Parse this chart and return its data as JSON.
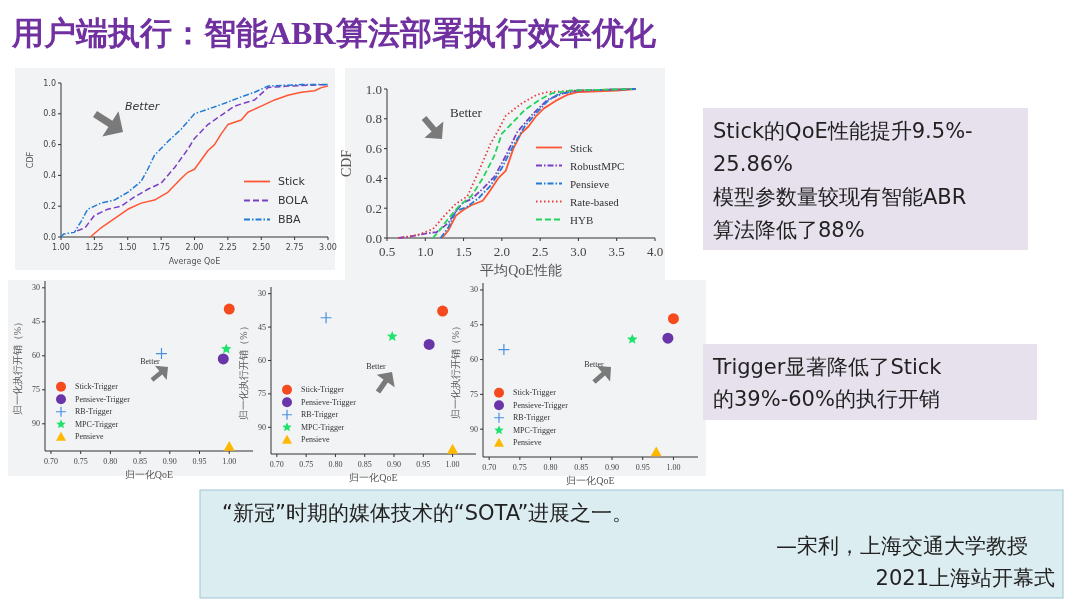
{
  "chart_data": [
    {
      "type": "line",
      "xlabel": "Average QoE",
      "ylabel": "CDF",
      "xlim": [
        1,
        3
      ],
      "ylim": [
        0,
        1
      ],
      "xticks": [
        {
          "value": 1,
          "label": "1.00"
        },
        {
          "value": 1.25,
          "label": "1.25"
        },
        {
          "value": 1.5,
          "label": "1.50"
        },
        {
          "value": 1.75,
          "label": "1.75"
        },
        {
          "value": 2,
          "label": "2.00"
        },
        {
          "value": 2.25,
          "label": "2.25"
        },
        {
          "value": 2.5,
          "label": "2.50"
        },
        {
          "value": 2.75,
          "label": "2.75"
        },
        {
          "value": 3,
          "label": "3.00"
        }
      ],
      "yticks": [
        {
          "value": 0,
          "label": "0.0"
        },
        {
          "value": 0.2,
          "label": "0.2"
        },
        {
          "value": 0.4,
          "label": "0.4"
        },
        {
          "value": 0.6,
          "label": "0.6"
        },
        {
          "value": 0.8,
          "label": "0.8"
        },
        {
          "value": 1,
          "label": "1.0"
        }
      ],
      "legend": "bottom right",
      "annotations": [
        "Better"
      ],
      "series": [
        {
          "name": "Stick",
          "color": "#ff5533",
          "line_style": "solid",
          "x": [
            1.22,
            1.3,
            1.4,
            1.5,
            1.6,
            1.7,
            1.8,
            1.9,
            1.95,
            2,
            2.05,
            2.1,
            2.15,
            2.2,
            2.25,
            2.35,
            2.4,
            2.5,
            2.6,
            2.7,
            2.8,
            2.9,
            2.95,
            3
          ],
          "values": [
            0,
            0.06,
            0.12,
            0.18,
            0.22,
            0.24,
            0.29,
            0.38,
            0.42,
            0.44,
            0.5,
            0.56,
            0.6,
            0.67,
            0.73,
            0.76,
            0.81,
            0.85,
            0.89,
            0.92,
            0.94,
            0.95,
            0.97,
            0.98
          ]
        },
        {
          "name": "BOLA",
          "color": "#7b3fc4",
          "line_style": "dashed",
          "x": [
            1.12,
            1.18,
            1.25,
            1.35,
            1.45,
            1.55,
            1.65,
            1.75,
            1.85,
            1.95,
            2,
            2.1,
            2.2,
            2.3,
            2.45,
            2.55,
            2.7,
            3
          ],
          "values": [
            0.04,
            0.06,
            0.14,
            0.18,
            0.2,
            0.26,
            0.31,
            0.35,
            0.45,
            0.57,
            0.64,
            0.73,
            0.79,
            0.85,
            0.89,
            0.97,
            0.98,
            0.99
          ]
        },
        {
          "name": "BBA",
          "color": "#1f7bd6",
          "line_style": "dashdot",
          "x": [
            1,
            1.02,
            1.1,
            1.15,
            1.2,
            1.3,
            1.4,
            1.5,
            1.6,
            1.65,
            1.7,
            1.8,
            1.9,
            2,
            2.1,
            2.2,
            2.35,
            2.45,
            2.55,
            2.8,
            3
          ],
          "values": [
            0,
            0.02,
            0.03,
            0.1,
            0.18,
            0.22,
            0.24,
            0.29,
            0.36,
            0.44,
            0.53,
            0.62,
            0.7,
            0.8,
            0.83,
            0.86,
            0.91,
            0.94,
            0.98,
            0.99,
            0.99
          ]
        }
      ]
    },
    {
      "type": "line",
      "xlabel": "平均QoE性能",
      "ylabel": "CDF",
      "xlim": [
        0.5,
        4
      ],
      "ylim": [
        0,
        1
      ],
      "xticks": [
        0.5,
        {
          "value": 1,
          "label": "1.0"
        },
        1.5,
        {
          "value": 2,
          "label": "2.0"
        },
        2.5,
        {
          "value": 3,
          "label": "3.0"
        },
        3.5,
        {
          "value": 4,
          "label": "4.0"
        }
      ],
      "yticks": [
        {
          "value": 0,
          "label": "0.0"
        },
        0.2,
        0.4,
        0.6,
        0.8,
        {
          "value": 1,
          "label": "1.0"
        }
      ],
      "legend": "right",
      "annotations": [
        "Better"
      ],
      "series": [
        {
          "name": "Stick",
          "color": "#ff5533",
          "line_style": "solid",
          "x": [
            1.22,
            1.3,
            1.4,
            1.5,
            1.6,
            1.75,
            1.85,
            1.95,
            2.05,
            2.15,
            2.25,
            2.35,
            2.45,
            2.55,
            2.7,
            2.85,
            3,
            3.5,
            3.75
          ],
          "values": [
            0,
            0.05,
            0.15,
            0.19,
            0.22,
            0.25,
            0.32,
            0.4,
            0.45,
            0.6,
            0.7,
            0.75,
            0.82,
            0.87,
            0.92,
            0.96,
            0.98,
            0.99,
            1
          ]
        },
        {
          "name": "RobustMPC",
          "color": "#7b3fc4",
          "line_style": "dashdot",
          "x": [
            0.65,
            0.8,
            1,
            1.15,
            1.3,
            1.4,
            1.5,
            1.6,
            1.75,
            1.9,
            2.05,
            2.2,
            2.4,
            2.6,
            2.8,
            3,
            3.75
          ],
          "values": [
            0,
            0.01,
            0.03,
            0.04,
            0.1,
            0.18,
            0.24,
            0.26,
            0.33,
            0.41,
            0.55,
            0.71,
            0.83,
            0.93,
            0.97,
            0.99,
            1
          ]
        },
        {
          "name": "Pensieve",
          "color": "#1f7bd6",
          "line_style": "dashdot",
          "x": [
            1.2,
            1.3,
            1.4,
            1.55,
            1.7,
            1.85,
            2,
            2.15,
            2.3,
            2.45,
            2.6,
            2.75,
            3,
            3.75
          ],
          "values": [
            0,
            0.07,
            0.18,
            0.21,
            0.27,
            0.35,
            0.47,
            0.62,
            0.75,
            0.84,
            0.92,
            0.97,
            0.99,
            1
          ]
        },
        {
          "name": "Rate-based",
          "color": "#e83c3c",
          "line_style": "dotted",
          "x": [
            0.65,
            0.9,
            1.1,
            1.25,
            1.4,
            1.55,
            1.7,
            1.85,
            1.95,
            2.05,
            2.25,
            2.45,
            2.6,
            3,
            3.7
          ],
          "values": [
            0,
            0.02,
            0.06,
            0.15,
            0.23,
            0.28,
            0.45,
            0.63,
            0.72,
            0.82,
            0.9,
            0.96,
            0.98,
            0.99,
            1
          ]
        },
        {
          "name": "HYB",
          "color": "#22d35a",
          "line_style": "dashed",
          "x": [
            1.1,
            1.2,
            1.3,
            1.45,
            1.6,
            1.75,
            1.9,
            2,
            2.15,
            2.3,
            2.5,
            2.65,
            2.9,
            3.7
          ],
          "values": [
            0,
            0.06,
            0.13,
            0.22,
            0.28,
            0.4,
            0.55,
            0.7,
            0.78,
            0.86,
            0.93,
            0.97,
            0.99,
            1
          ]
        }
      ]
    },
    {
      "type": "scatter",
      "xlabel": "归一化QoE",
      "ylabel": "归一化执行开销（%）",
      "xlim": [
        0.69,
        1.04
      ],
      "ylim": [
        102,
        27
      ],
      "xticks": [
        {
          "value": 0.7,
          "label": "0.70"
        },
        0.75,
        {
          "value": 0.8,
          "label": "0.80"
        },
        0.85,
        {
          "value": 0.9,
          "label": "0.90"
        },
        0.95,
        {
          "value": 1,
          "label": "1.00"
        }
      ],
      "yticks": [
        30,
        45,
        60,
        75,
        90
      ],
      "legend": "bottom left",
      "annotations": [
        "Better"
      ],
      "series": [
        {
          "name": "Stick-Trigger",
          "color": "#f44a1e",
          "marker": "circle",
          "x": [
            1
          ],
          "values": [
            39.4
          ]
        },
        {
          "name": "Pensieve-Trigger",
          "color": "#6a35a8",
          "marker": "circle",
          "x": [
            0.99
          ],
          "values": [
            61.4
          ]
        },
        {
          "name": "RB-Trigger",
          "color": "#4a90e2",
          "marker": "cross",
          "x": [
            0.886
          ],
          "values": [
            59
          ]
        },
        {
          "name": "MPC-Trigger",
          "color": "#1ee36a",
          "marker": "star",
          "x": [
            0.995
          ],
          "values": [
            57
          ]
        },
        {
          "name": "Pensieve",
          "color": "#ffb800",
          "marker": "triangle",
          "x": [
            1
          ],
          "values": [
            100
          ]
        }
      ]
    },
    {
      "type": "scatter",
      "xlabel": "归一化QoE",
      "ylabel": "归一化执行开销（%）",
      "xlim": [
        0.69,
        1.04
      ],
      "ylim": [
        102,
        27
      ],
      "xticks": [
        {
          "value": 0.7,
          "label": "0.70"
        },
        0.75,
        {
          "value": 0.8,
          "label": "0.80"
        },
        0.85,
        {
          "value": 0.9,
          "label": "0.90"
        },
        0.95,
        {
          "value": 1,
          "label": "1.00"
        }
      ],
      "yticks": [
        30,
        45,
        60,
        75,
        90
      ],
      "legend": "bottom left",
      "annotations": [
        "Better"
      ],
      "series": [
        {
          "name": "Stick-Trigger",
          "color": "#f44a1e",
          "marker": "circle",
          "x": [
            0.983
          ],
          "values": [
            37.8
          ]
        },
        {
          "name": "Pensieve-Trigger",
          "color": "#6a35a8",
          "marker": "circle",
          "x": [
            0.96
          ],
          "values": [
            52.8
          ]
        },
        {
          "name": "RB-Trigger",
          "color": "#4a90e2",
          "marker": "cross",
          "x": [
            0.784
          ],
          "values": [
            40.8
          ]
        },
        {
          "name": "MPC-Trigger",
          "color": "#1ee36a",
          "marker": "star",
          "x": [
            0.897
          ],
          "values": [
            49.2
          ]
        },
        {
          "name": "Pensieve",
          "color": "#ffb800",
          "marker": "triangle",
          "x": [
            1
          ],
          "values": [
            99.9
          ]
        }
      ]
    },
    {
      "type": "scatter",
      "xlabel": "归一化QoE",
      "ylabel": "归一化执行开销（%）",
      "xlim": [
        0.69,
        1.04
      ],
      "ylim": [
        102,
        27
      ],
      "xticks": [
        {
          "value": 0.7,
          "label": "0.70"
        },
        0.75,
        {
          "value": 0.8,
          "label": "0.80"
        },
        0.85,
        {
          "value": 0.9,
          "label": "0.90"
        },
        0.95,
        {
          "value": 1,
          "label": "1.00"
        }
      ],
      "yticks": [
        30,
        45,
        60,
        75,
        90
      ],
      "legend": "bottom left",
      "annotations": [
        "Better"
      ],
      "series": [
        {
          "name": "Stick-Trigger",
          "color": "#f44a1e",
          "marker": "circle",
          "x": [
            1
          ],
          "values": [
            42.4
          ]
        },
        {
          "name": "Pensieve-Trigger",
          "color": "#6a35a8",
          "marker": "circle",
          "x": [
            0.991
          ],
          "values": [
            50.8
          ]
        },
        {
          "name": "RB-Trigger",
          "color": "#4a90e2",
          "marker": "cross",
          "x": [
            0.724
          ],
          "values": [
            55.7
          ]
        },
        {
          "name": "MPC-Trigger",
          "color": "#1ee36a",
          "marker": "star",
          "x": [
            0.933
          ],
          "values": [
            51.3
          ]
        },
        {
          "name": "Pensieve",
          "color": "#ffb800",
          "marker": "triangle",
          "x": [
            0.972
          ],
          "values": [
            99.8
          ]
        }
      ]
    },
    {
      "type": "other",
      "title": "用户端执行：智能ABR算法部署执行效率优化",
      "annotations": [
        "Stick的QoE性能提升9.5%-25.86%",
        "模型参数量较现有智能ABR算法降低了88%",
        "Trigger显著降低了Stick的39%-60%的执行开销",
        "“新冠”时期的媒体技术的“SOTA”进展之一。",
        "—宋利，上海交通大学教授",
        "2021上海站开幕式"
      ]
    }
  ]
}
